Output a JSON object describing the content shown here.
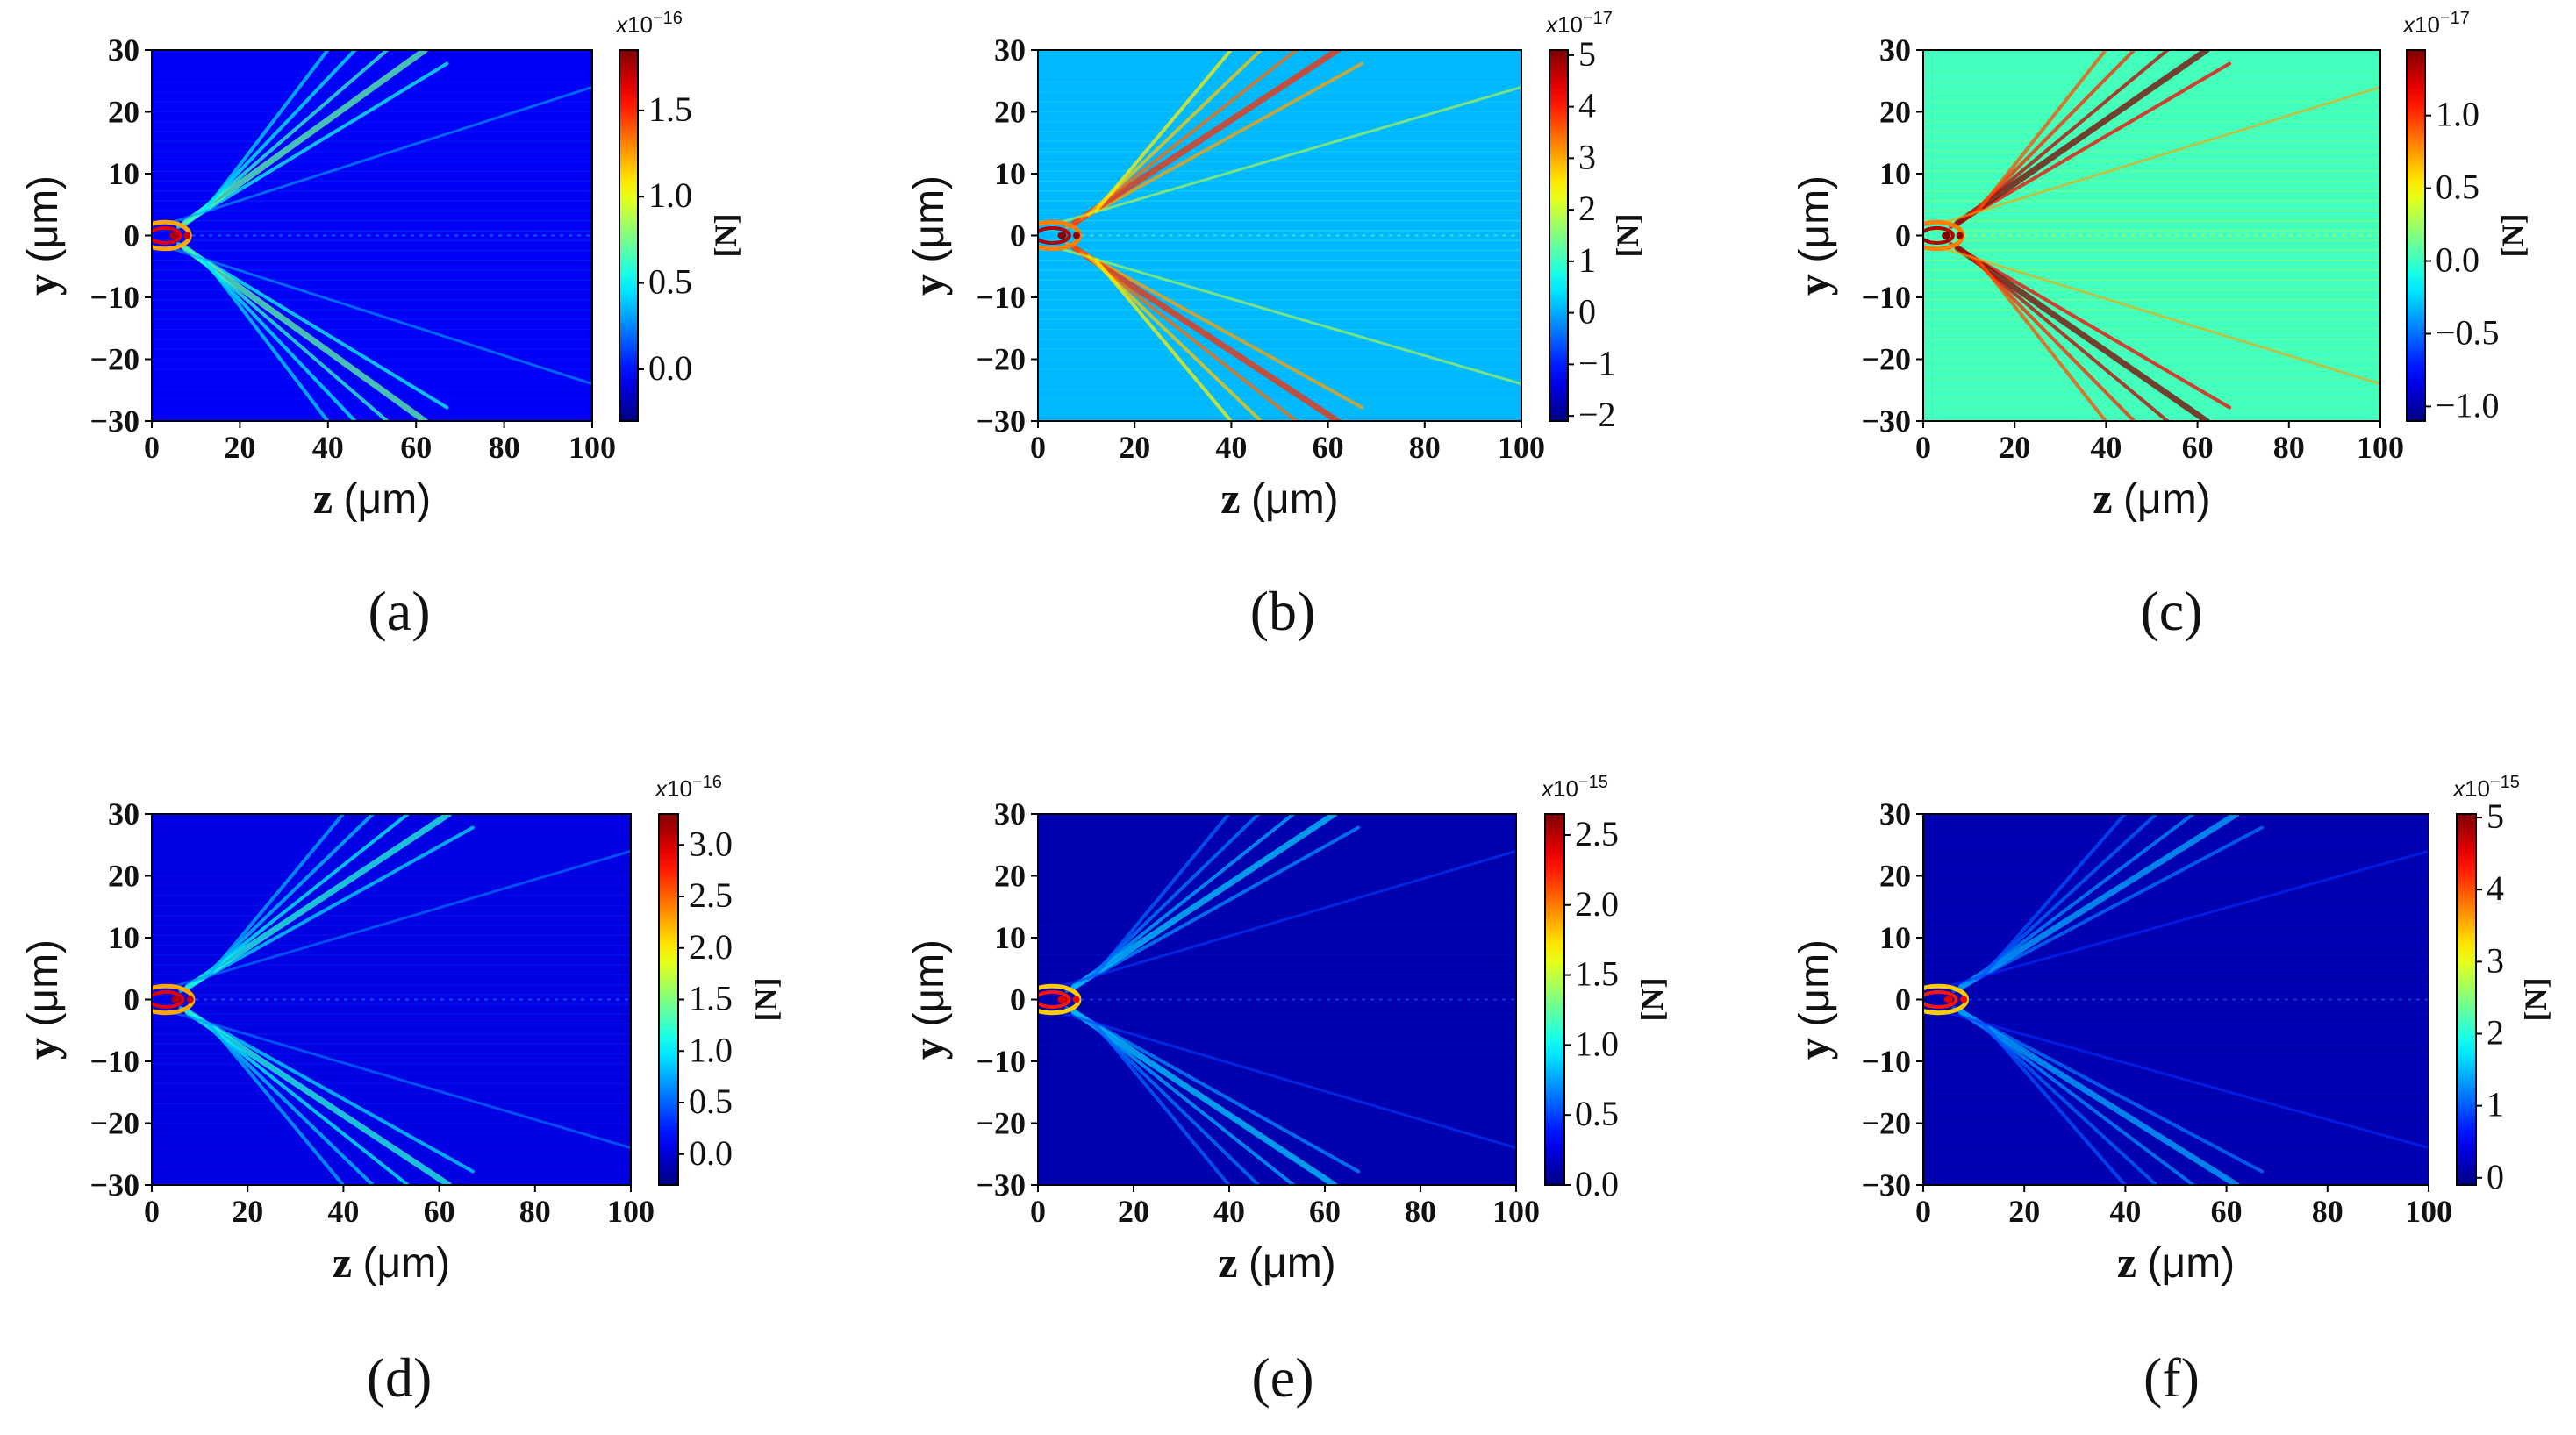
{
  "chart_data": [
    {
      "type": "heatmap",
      "panel": "(a)",
      "xlabel": "z",
      "xlabel_unit": "(μm)",
      "ylabel": "y",
      "ylabel_unit": "(μm)",
      "xlim": [
        0,
        100
      ],
      "ylim": [
        -30,
        30
      ],
      "xticks": [
        "0",
        "20",
        "40",
        "60",
        "80",
        "100"
      ],
      "yticks": [
        "30",
        "20",
        "10",
        "0",
        "−10",
        "−20",
        "−30"
      ],
      "colorbar": {
        "label": "[N]",
        "multiplier": "x10",
        "exponent": "−16",
        "range": [
          -0.3,
          1.85
        ],
        "ticks": [
          0.0,
          0.5,
          1.0,
          1.5
        ],
        "tick_labels": [
          "0.0",
          "0.5",
          "1.0",
          "1.5"
        ]
      },
      "background_value": -0.05
    },
    {
      "type": "heatmap",
      "panel": "(b)",
      "xlabel": "z",
      "xlabel_unit": "(μm)",
      "ylabel": "y",
      "ylabel_unit": "(μm)",
      "xlim": [
        0,
        100
      ],
      "ylim": [
        -30,
        30
      ],
      "xticks": [
        "0",
        "20",
        "40",
        "60",
        "80",
        "100"
      ],
      "yticks": [
        "30",
        "20",
        "10",
        "0",
        "−10",
        "−20",
        "−30"
      ],
      "colorbar": {
        "label": "[N]",
        "multiplier": "x10",
        "exponent": "−17",
        "range": [
          -2.1,
          5.1
        ],
        "ticks": [
          -2,
          -1,
          0,
          1,
          2,
          3,
          4,
          5
        ],
        "tick_labels": [
          "−2",
          "−1",
          "0",
          "1",
          "2",
          "3",
          "4",
          "5"
        ]
      },
      "background_value": 0.1
    },
    {
      "type": "heatmap",
      "panel": "(c)",
      "xlabel": "z",
      "xlabel_unit": "(μm)",
      "ylabel": "y",
      "ylabel_unit": "(μm)",
      "xlim": [
        0,
        100
      ],
      "ylim": [
        -30,
        30
      ],
      "xticks": [
        "0",
        "20",
        "40",
        "60",
        "80",
        "100"
      ],
      "yticks": [
        "30",
        "20",
        "10",
        "0",
        "−10",
        "−20",
        "−30"
      ],
      "colorbar": {
        "label": "[N]",
        "multiplier": "x10",
        "exponent": "−17",
        "range": [
          -1.1,
          1.45
        ],
        "ticks": [
          -1.0,
          -0.5,
          0.0,
          0.5,
          1.0
        ],
        "tick_labels": [
          "−1.0",
          "−0.5",
          "0.0",
          "0.5",
          "1.0"
        ]
      },
      "background_value": 0.02
    },
    {
      "type": "heatmap",
      "panel": "(d)",
      "xlabel": "z",
      "xlabel_unit": "(μm)",
      "ylabel": "y",
      "ylabel_unit": "(μm)",
      "xlim": [
        0,
        100
      ],
      "ylim": [
        -30,
        30
      ],
      "xticks": [
        "0",
        "20",
        "40",
        "60",
        "80",
        "100"
      ],
      "yticks": [
        "30",
        "20",
        "10",
        "0",
        "−10",
        "−20",
        "−30"
      ],
      "colorbar": {
        "label": "[N]",
        "multiplier": "x10",
        "exponent": "−16",
        "range": [
          -0.3,
          3.3
        ],
        "ticks": [
          0.0,
          0.5,
          1.0,
          1.5,
          2.0,
          2.5,
          3.0
        ],
        "tick_labels": [
          "0.0",
          "0.5",
          "1.0",
          "1.5",
          "2.0",
          "2.5",
          "3.0"
        ]
      },
      "background_value": 0.05
    },
    {
      "type": "heatmap",
      "panel": "(e)",
      "xlabel": "z",
      "xlabel_unit": "(μm)",
      "ylabel": "y",
      "ylabel_unit": "(μm)",
      "xlim": [
        0,
        100
      ],
      "ylim": [
        -30,
        30
      ],
      "xticks": [
        "0",
        "20",
        "40",
        "60",
        "80",
        "100"
      ],
      "yticks": [
        "30",
        "20",
        "10",
        "0",
        "−10",
        "−20",
        "−30"
      ],
      "colorbar": {
        "label": "[N]",
        "multiplier": "x10",
        "exponent": "−15",
        "range": [
          0.0,
          2.65
        ],
        "ticks": [
          0.0,
          0.5,
          1.0,
          1.5,
          2.0,
          2.5
        ],
        "tick_labels": [
          "0.0",
          "0.5",
          "1.0",
          "1.5",
          "2.0",
          "2.5"
        ]
      },
      "background_value": 0.12
    },
    {
      "type": "heatmap",
      "panel": "(f)",
      "xlabel": "z",
      "xlabel_unit": "(μm)",
      "ylabel": "y",
      "ylabel_unit": "(μm)",
      "xlim": [
        0,
        100
      ],
      "ylim": [
        -30,
        30
      ],
      "xticks": [
        "0",
        "20",
        "40",
        "60",
        "80",
        "100"
      ],
      "yticks": [
        "30",
        "20",
        "10",
        "0",
        "−10",
        "−20",
        "−30"
      ],
      "colorbar": {
        "label": "[N]",
        "multiplier": "x10",
        "exponent": "−15",
        "range": [
          -0.1,
          5.05
        ],
        "ticks": [
          0,
          1,
          2,
          3,
          4,
          5
        ],
        "tick_labels": [
          "0",
          "1",
          "2",
          "3",
          "4",
          "5"
        ]
      },
      "background_value": 0.15
    }
  ]
}
